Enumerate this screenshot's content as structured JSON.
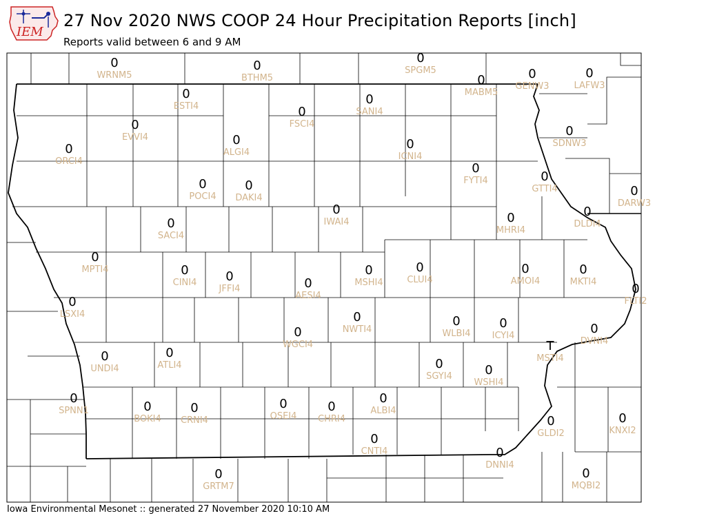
{
  "header": {
    "logo_text": "IEM",
    "title": "27 Nov 2020 NWS COOP 24 Hour Precipitation Reports [inch]",
    "subtitle": "Reports valid between 6 and 9 AM"
  },
  "footer": {
    "text": "Iowa Environmental Mesonet :: generated 27 November 2020 10:10 AM"
  },
  "colors": {
    "value_text": "#000000",
    "station_text": "#d2b48c",
    "county_lines": "#000000",
    "logo_red": "#cc2222",
    "logo_blue": "#1a2a9a"
  },
  "stations": [
    {
      "id": "WRNM5",
      "value": "0"
    },
    {
      "id": "BTHM5",
      "value": "0"
    },
    {
      "id": "SPGM5",
      "value": "0"
    },
    {
      "id": "MABM5",
      "value": "0"
    },
    {
      "id": "GENW3",
      "value": "0"
    },
    {
      "id": "LAFW3",
      "value": "0"
    },
    {
      "id": "ESTI4",
      "value": "0"
    },
    {
      "id": "SANI4",
      "value": "0"
    },
    {
      "id": "FSCI4",
      "value": "0"
    },
    {
      "id": "EVVI4",
      "value": "0"
    },
    {
      "id": "ORCI4",
      "value": "0"
    },
    {
      "id": "ALGI4",
      "value": "0"
    },
    {
      "id": "ICNI4",
      "value": "0"
    },
    {
      "id": "SDNW3",
      "value": "0"
    },
    {
      "id": "FYTI4",
      "value": "0"
    },
    {
      "id": "GTTI4",
      "value": "0"
    },
    {
      "id": "DARW3",
      "value": "0"
    },
    {
      "id": "POCI4",
      "value": "0"
    },
    {
      "id": "DAKI4",
      "value": "0"
    },
    {
      "id": "IWAI4",
      "value": "0"
    },
    {
      "id": "DLDI4",
      "value": "0"
    },
    {
      "id": "MHRI4",
      "value": "0"
    },
    {
      "id": "SACI4",
      "value": "0"
    },
    {
      "id": "MPTI4",
      "value": "0"
    },
    {
      "id": "CINI4",
      "value": "0"
    },
    {
      "id": "JFFI4",
      "value": "0"
    },
    {
      "id": "MSHI4",
      "value": "0"
    },
    {
      "id": "CLUI4",
      "value": "0"
    },
    {
      "id": "AMOI4",
      "value": "0"
    },
    {
      "id": "MKTI4",
      "value": "0"
    },
    {
      "id": "AESI4",
      "value": "0"
    },
    {
      "id": "FLTI2",
      "value": "0"
    },
    {
      "id": "LSXI4",
      "value": "0"
    },
    {
      "id": "NWTI4",
      "value": "0"
    },
    {
      "id": "WLBI4",
      "value": "0"
    },
    {
      "id": "ICYI4",
      "value": "0"
    },
    {
      "id": "DVNI4",
      "value": "0"
    },
    {
      "id": "WGCI4",
      "value": "0"
    },
    {
      "id": "MSTI4",
      "value": "T"
    },
    {
      "id": "UNDI4",
      "value": "0"
    },
    {
      "id": "ATLI4",
      "value": "0"
    },
    {
      "id": "SGYI4",
      "value": "0"
    },
    {
      "id": "WSHI4",
      "value": "0"
    },
    {
      "id": "SPNN1",
      "value": "0"
    },
    {
      "id": "BOKI4",
      "value": "0"
    },
    {
      "id": "CRNI4",
      "value": "0"
    },
    {
      "id": "OSEI4",
      "value": "0"
    },
    {
      "id": "CHRI4",
      "value": "0"
    },
    {
      "id": "ALBI4",
      "value": "0"
    },
    {
      "id": "KNXI2",
      "value": "0"
    },
    {
      "id": "GLDI2",
      "value": "0"
    },
    {
      "id": "CNTI4",
      "value": "0"
    },
    {
      "id": "DNNI4",
      "value": "0"
    },
    {
      "id": "GRTM7",
      "value": "0"
    },
    {
      "id": "MQBI2",
      "value": "0"
    }
  ]
}
